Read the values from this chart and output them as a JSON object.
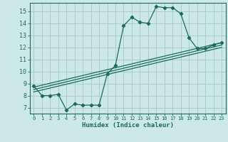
{
  "xlabel": "Humidex (Indice chaleur)",
  "background_color": "#cce8e8",
  "grid_color": "#aacccc",
  "line_color": "#1a6b5a",
  "xlim": [
    -0.5,
    23.5
  ],
  "ylim": [
    6.5,
    15.7
  ],
  "xticks": [
    0,
    1,
    2,
    3,
    4,
    5,
    6,
    7,
    8,
    9,
    10,
    11,
    12,
    13,
    14,
    15,
    16,
    17,
    18,
    19,
    20,
    21,
    22,
    23
  ],
  "yticks": [
    7,
    8,
    9,
    10,
    11,
    12,
    13,
    14,
    15
  ],
  "curve1_x": [
    0,
    1,
    2,
    3,
    4,
    5,
    6,
    7,
    8,
    9,
    10,
    11,
    12,
    13,
    14,
    15,
    16,
    17,
    18,
    19,
    20,
    21,
    22,
    23
  ],
  "curve1_y": [
    8.8,
    8.0,
    8.0,
    8.1,
    6.8,
    7.3,
    7.2,
    7.2,
    7.2,
    9.8,
    10.5,
    13.8,
    14.5,
    14.1,
    14.0,
    15.4,
    15.3,
    15.3,
    14.8,
    12.8,
    11.9,
    11.9,
    12.2,
    12.4
  ],
  "line1_x": [
    0,
    23
  ],
  "line1_y": [
    8.7,
    12.4
  ],
  "line2_x": [
    0,
    23
  ],
  "line2_y": [
    8.5,
    12.2
  ],
  "line3_x": [
    0,
    23
  ],
  "line3_y": [
    8.3,
    12.0
  ],
  "xtick_fontsize": 5.0,
  "ytick_fontsize": 6.0,
  "xlabel_fontsize": 6.5
}
